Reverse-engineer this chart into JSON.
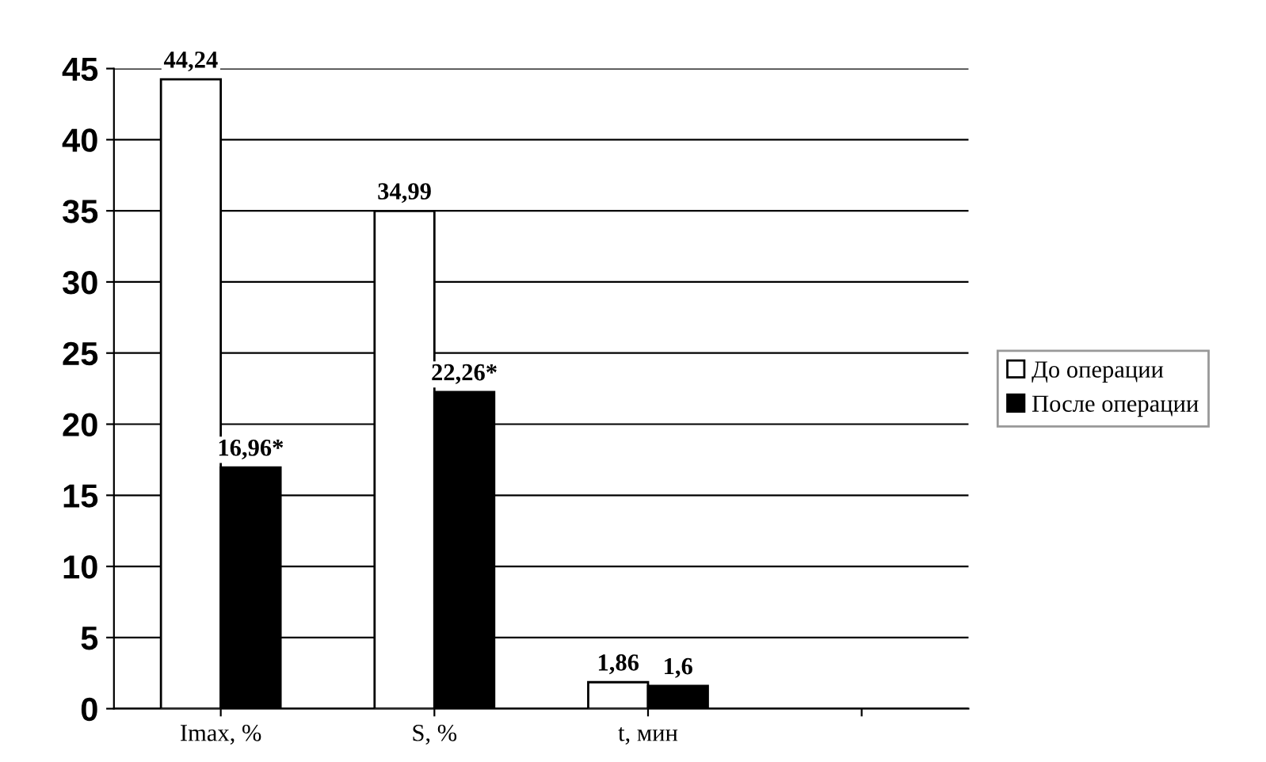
{
  "chart_data": {
    "type": "bar",
    "categories": [
      "Imax, %",
      "S, %",
      "t, мин",
      null
    ],
    "series": [
      {
        "name": "До операции",
        "color": "#ffffff",
        "values": [
          44.24,
          34.99,
          1.86,
          null
        ],
        "value_labels": [
          "44,24",
          "34,99",
          "1,86",
          null
        ]
      },
      {
        "name": "После операции",
        "color": "#000000",
        "values": [
          16.96,
          22.26,
          1.6,
          null
        ],
        "value_labels": [
          "16,96*",
          "22,26*",
          "1,6",
          null
        ]
      }
    ],
    "ylim": [
      0,
      45
    ],
    "yticks": [
      0,
      5,
      10,
      15,
      20,
      25,
      30,
      35,
      40,
      45
    ],
    "grid": "y",
    "legend": "right"
  }
}
